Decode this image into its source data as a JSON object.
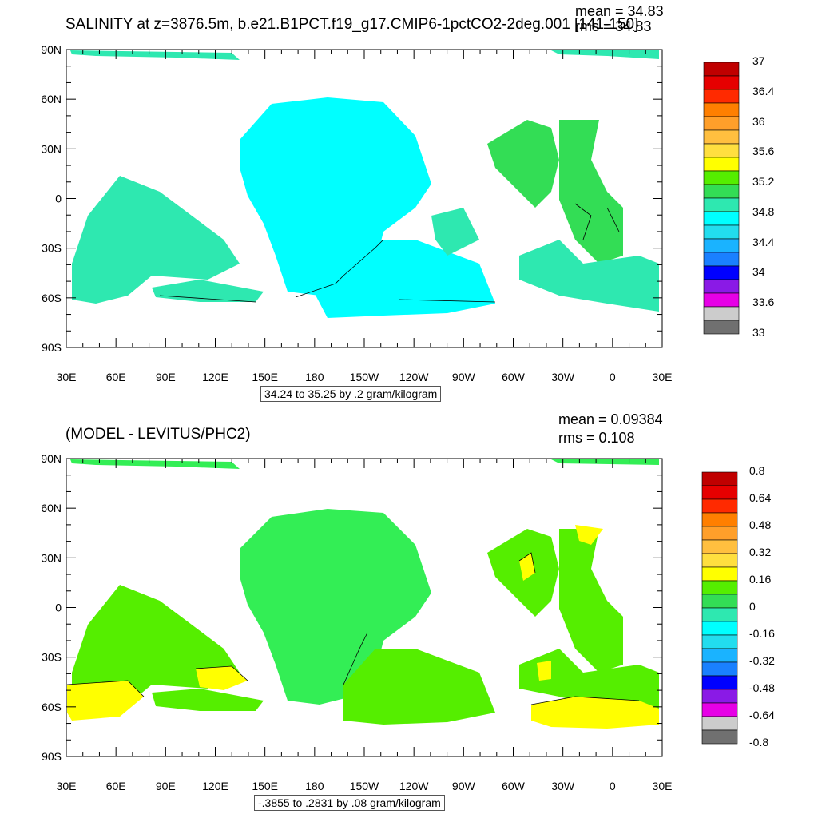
{
  "panels": [
    {
      "title": "SALINITY at z=3876.5m, b.e21.B1PCT.f19_g17.CMIP6-1pctCO2-2deg.001 [141-150]",
      "stats": {
        "mean": "mean = 34.83",
        "rms": "rms = 34.83"
      },
      "contour_info": "34.24 to 35.25 by .2 gram/kilogram",
      "colorbar": {
        "labels": [
          "37",
          "36.4",
          "36",
          "35.6",
          "35.2",
          "34.8",
          "34.4",
          "34",
          "33.6",
          "33"
        ],
        "colors": [
          "#c00000",
          "#e60000",
          "#ff2a00",
          "#ff7f00",
          "#ff9f2a",
          "#ffbf3f",
          "#ffdf3f",
          "#ffff00",
          "#55ee00",
          "#33dd55",
          "#2ee8b0",
          "#00ffff",
          "#22ddee",
          "#1ab3ff",
          "#1a80ff",
          "#0000ff",
          "#8a1ae6",
          "#e600e6",
          "#cccccc",
          "#707070"
        ]
      },
      "fields": [
        {
          "region": "Pacific",
          "color": "#00ffff"
        },
        {
          "region": "Atlantic",
          "color": "#33dd55"
        },
        {
          "region": "Southern Ocean / Indian",
          "color": "#2ee8b0"
        }
      ]
    },
    {
      "title": "(MODEL - LEVITUS/PHC2)",
      "stats": {
        "mean": "mean = 0.09384",
        "rms": "rms = 0.108"
      },
      "contour_info": "-.3855 to .2831 by .08 gram/kilogram",
      "colorbar": {
        "labels": [
          "0.8",
          "0.64",
          "0.48",
          "0.32",
          "0.16",
          "0",
          "-0.16",
          "-0.32",
          "-0.48",
          "-0.64",
          "-0.8"
        ],
        "colors": [
          "#c00000",
          "#e60000",
          "#ff2a00",
          "#ff7f00",
          "#ff9f2a",
          "#ffbf3f",
          "#ffdf3f",
          "#ffff00",
          "#55ee00",
          "#33dd55",
          "#2ee8b0",
          "#00ffff",
          "#22ddee",
          "#1ab3ff",
          "#1a80ff",
          "#0000ff",
          "#8a1ae6",
          "#e600e6",
          "#cccccc",
          "#707070"
        ]
      },
      "fields": [
        {
          "region": "Pacific",
          "color": "#33ee55"
        },
        {
          "region": "Atlantic / Indian",
          "color": "#55ee00"
        },
        {
          "region": "Positive anomaly",
          "color": "#ffff00"
        }
      ]
    }
  ],
  "axes": {
    "lat_labels": [
      "90N",
      "60N",
      "30N",
      "0",
      "30S",
      "60S",
      "90S"
    ],
    "lon_labels": [
      "30E",
      "60E",
      "90E",
      "120E",
      "150E",
      "180",
      "150W",
      "120W",
      "90W",
      "60W",
      "30W",
      "0",
      "30E"
    ]
  }
}
